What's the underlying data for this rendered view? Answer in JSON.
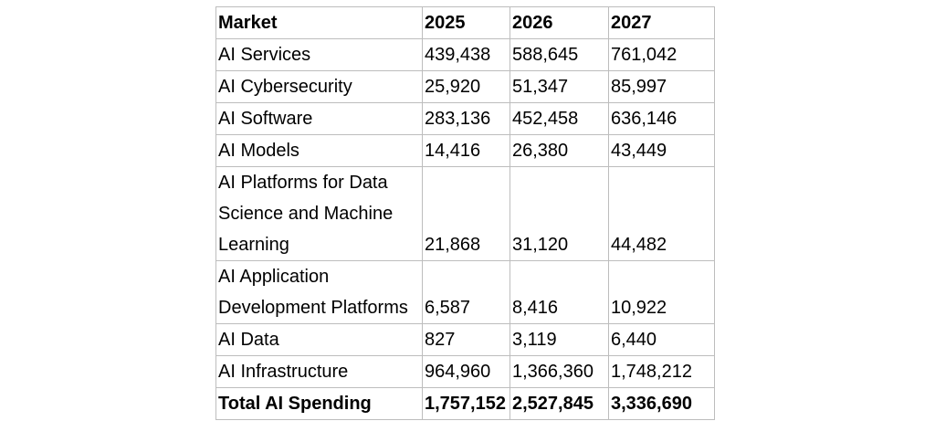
{
  "table": {
    "headers": [
      "Market",
      "2025",
      "2026",
      "2027"
    ],
    "rows": [
      {
        "market": "AI Services",
        "values": [
          "439,438",
          "588,645",
          "761,042"
        ]
      },
      {
        "market": "AI Cybersecurity",
        "values": [
          "25,920",
          "51,347",
          "85,997"
        ]
      },
      {
        "market": "AI Software",
        "values": [
          "283,136",
          "452,458",
          "636,146"
        ]
      },
      {
        "market": "AI Models",
        "values": [
          "14,416",
          "26,380",
          "43,449"
        ]
      },
      {
        "market": "AI Platforms for Data Science and Machine Learning",
        "values": [
          "21,868",
          "31,120",
          "44,482"
        ]
      },
      {
        "market": "AI Application Development Platforms",
        "values": [
          "6,587",
          "8,416",
          "10,922"
        ]
      },
      {
        "market": "AI Data",
        "values": [
          "827",
          "3,119",
          "6,440"
        ]
      },
      {
        "market": "AI Infrastructure",
        "values": [
          "964,960",
          "1,366,360",
          "1,748,212"
        ]
      }
    ],
    "total": {
      "market": "Total AI Spending",
      "values": [
        "1,757,152",
        "2,527,845",
        "3,336,690"
      ]
    }
  }
}
